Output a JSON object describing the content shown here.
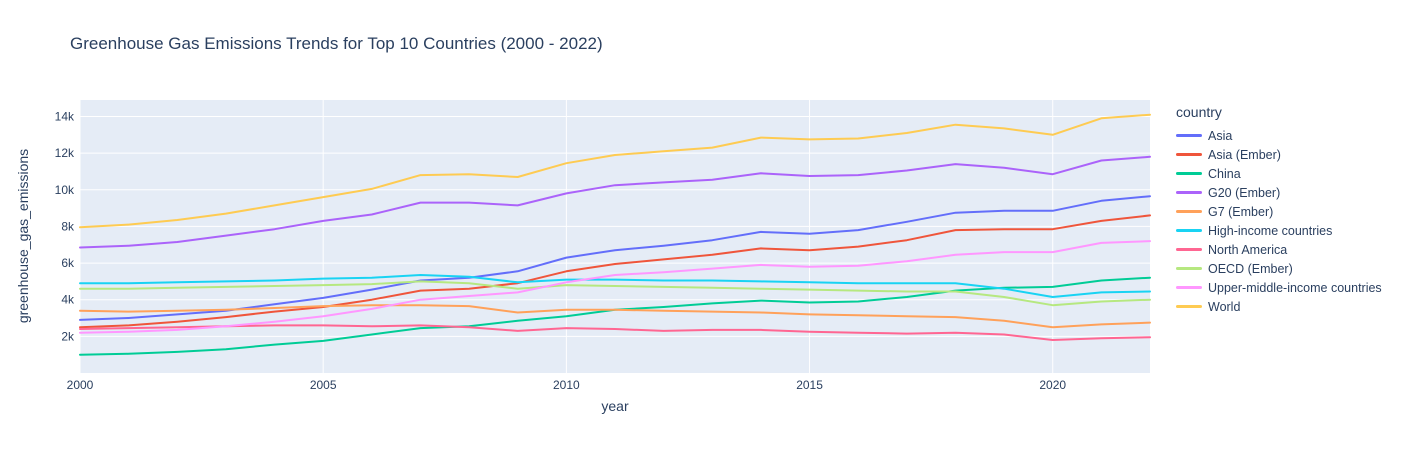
{
  "title": "Greenhouse Gas Emissions Trends for Top 10 Countries (2000 - 2022)",
  "colors": {
    "text": "#2a3f5f",
    "plot_background": "#e5ecf6",
    "grid": "#ffffff",
    "paper": "#ffffff"
  },
  "legend": {
    "title": "country"
  },
  "chart_data": {
    "type": "line",
    "title": "Greenhouse Gas Emissions Trends for Top 10 Countries (2000 - 2022)",
    "xlabel": "year",
    "ylabel": "greenhouse_gas_emissions",
    "xlim": [
      2000,
      2022
    ],
    "ylim": [
      0,
      14900
    ],
    "grid": true,
    "legend_position": "right",
    "x_ticks": [
      {
        "value": 2000,
        "label": "2000"
      },
      {
        "value": 2005,
        "label": "2005"
      },
      {
        "value": 2010,
        "label": "2010"
      },
      {
        "value": 2015,
        "label": "2015"
      },
      {
        "value": 2020,
        "label": "2020"
      }
    ],
    "y_ticks": [
      {
        "value": 2000,
        "label": "2k"
      },
      {
        "value": 4000,
        "label": "4k"
      },
      {
        "value": 6000,
        "label": "6k"
      },
      {
        "value": 8000,
        "label": "8k"
      },
      {
        "value": 10000,
        "label": "10k"
      },
      {
        "value": 12000,
        "label": "12k"
      },
      {
        "value": 14000,
        "label": "14k"
      }
    ],
    "x": [
      2000,
      2001,
      2002,
      2003,
      2004,
      2005,
      2006,
      2007,
      2008,
      2009,
      2010,
      2011,
      2012,
      2013,
      2014,
      2015,
      2016,
      2017,
      2018,
      2019,
      2020,
      2021,
      2022
    ],
    "series": [
      {
        "name": "Asia",
        "color": "#636efa",
        "values": [
          2900,
          3000,
          3200,
          3400,
          3750,
          4100,
          4550,
          5050,
          5200,
          5550,
          6300,
          6700,
          6950,
          7250,
          7700,
          7600,
          7800,
          8250,
          8750,
          8850,
          8850,
          9400,
          9650
        ]
      },
      {
        "name": "Asia (Ember)",
        "color": "#ef553b",
        "values": [
          2500,
          2600,
          2800,
          3050,
          3350,
          3600,
          4000,
          4500,
          4600,
          4900,
          5550,
          5950,
          6200,
          6450,
          6800,
          6700,
          6900,
          7250,
          7800,
          7850,
          7850,
          8300,
          8600
        ]
      },
      {
        "name": "China",
        "color": "#00cc96",
        "values": [
          1000,
          1050,
          1150,
          1300,
          1550,
          1750,
          2100,
          2450,
          2550,
          2850,
          3100,
          3450,
          3600,
          3800,
          3950,
          3850,
          3900,
          4150,
          4500,
          4650,
          4700,
          5050,
          5200
        ]
      },
      {
        "name": "G20 (Ember)",
        "color": "#ab63fa",
        "values": [
          6850,
          6950,
          7150,
          7500,
          7850,
          8300,
          8650,
          9300,
          9300,
          9150,
          9800,
          10250,
          10400,
          10550,
          10900,
          10750,
          10800,
          11050,
          11400,
          11200,
          10850,
          11600,
          11800
        ]
      },
      {
        "name": "G7 (Ember)",
        "color": "#ffa15a",
        "values": [
          3400,
          3350,
          3400,
          3450,
          3550,
          3650,
          3700,
          3700,
          3650,
          3300,
          3450,
          3450,
          3400,
          3350,
          3300,
          3200,
          3150,
          3100,
          3050,
          2850,
          2500,
          2650,
          2750
        ]
      },
      {
        "name": "High-income countries",
        "color": "#19d3f3",
        "values": [
          4900,
          4900,
          4950,
          5000,
          5050,
          5150,
          5200,
          5350,
          5250,
          4950,
          5100,
          5100,
          5050,
          5050,
          5000,
          4950,
          4900,
          4900,
          4900,
          4600,
          4150,
          4400,
          4450
        ]
      },
      {
        "name": "North America",
        "color": "#ff6692",
        "values": [
          2400,
          2450,
          2500,
          2550,
          2600,
          2600,
          2550,
          2600,
          2500,
          2300,
          2450,
          2400,
          2300,
          2350,
          2350,
          2250,
          2200,
          2150,
          2200,
          2100,
          1800,
          1900,
          1950
        ]
      },
      {
        "name": "OECD (Ember)",
        "color": "#b6e880",
        "values": [
          4600,
          4600,
          4650,
          4700,
          4750,
          4800,
          4850,
          5000,
          4900,
          4600,
          4800,
          4750,
          4700,
          4650,
          4600,
          4550,
          4500,
          4450,
          4450,
          4150,
          3700,
          3900,
          4000
        ]
      },
      {
        "name": "Upper-middle-income countries",
        "color": "#ff97ff",
        "values": [
          2200,
          2250,
          2350,
          2550,
          2800,
          3100,
          3500,
          4000,
          4200,
          4400,
          4950,
          5350,
          5500,
          5700,
          5900,
          5800,
          5850,
          6100,
          6450,
          6600,
          6600,
          7100,
          7200
        ]
      },
      {
        "name": "World",
        "color": "#fecb52",
        "values": [
          7950,
          8100,
          8350,
          8700,
          9150,
          9600,
          10050,
          10800,
          10850,
          10700,
          11450,
          11900,
          12100,
          12300,
          12850,
          12750,
          12800,
          13100,
          13550,
          13350,
          13000,
          13900,
          14100
        ]
      }
    ]
  }
}
